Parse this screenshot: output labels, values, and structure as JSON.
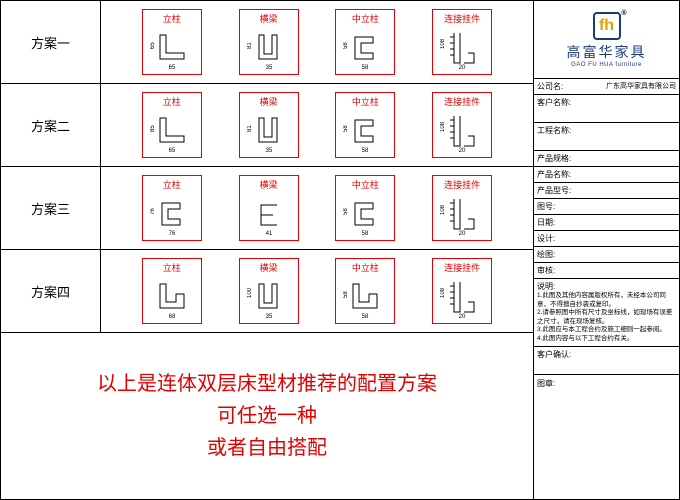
{
  "brand": {
    "cn": "高富华家具",
    "en": "GAO FU HUA furniture",
    "glyph": "fh"
  },
  "company_line": {
    "label": "公司名:",
    "value": "广东高华家具有限公司"
  },
  "schemes": [
    {
      "label": "方案一",
      "parts": [
        {
          "title": "立柱",
          "w": "65",
          "h": "65",
          "shape": "L"
        },
        {
          "title": "横梁",
          "w": "35",
          "h": "81",
          "shape": "U"
        },
        {
          "title": "中立柱",
          "w": "58",
          "h": "58",
          "shape": "C"
        },
        {
          "title": "连接挂件",
          "w": "20",
          "h": "108",
          "shape": "HOOK"
        }
      ]
    },
    {
      "label": "方案二",
      "parts": [
        {
          "title": "立柱",
          "w": "65",
          "h": "85",
          "shape": "L"
        },
        {
          "title": "横梁",
          "w": "35",
          "h": "81",
          "shape": "U"
        },
        {
          "title": "中立柱",
          "w": "58",
          "h": "58",
          "shape": "C"
        },
        {
          "title": "连接挂件",
          "w": "20",
          "h": "108",
          "shape": "HOOK"
        }
      ]
    },
    {
      "label": "方案三",
      "parts": [
        {
          "title": "立柱",
          "w": "76",
          "h": "76",
          "shape": "C"
        },
        {
          "title": "横梁",
          "w": "41",
          "h": "",
          "shape": "C2"
        },
        {
          "title": "中立柱",
          "w": "58",
          "h": "58",
          "shape": "C"
        },
        {
          "title": "连接挂件",
          "w": "20",
          "h": "108",
          "shape": "HOOK"
        }
      ]
    },
    {
      "label": "方案四",
      "parts": [
        {
          "title": "立柱",
          "w": "68",
          "h": "",
          "shape": "L2"
        },
        {
          "title": "横梁",
          "w": "35",
          "h": "100",
          "shape": "U"
        },
        {
          "title": "中立柱",
          "w": "58",
          "h": "58",
          "shape": "L2"
        },
        {
          "title": "连接挂件",
          "w": "20",
          "h": "108",
          "shape": "HOOK"
        }
      ]
    }
  ],
  "summary": [
    "以上是连体双层床型材推荐的配置方案",
    "可任选一种",
    "或者自由搭配"
  ],
  "info_rows": [
    {
      "label": "客户名称:",
      "value": ""
    },
    {
      "label": "工程名称:",
      "value": ""
    },
    {
      "label": "产品规格:",
      "value": ""
    },
    {
      "label": "产品名称:",
      "value": ""
    },
    {
      "label": "产品型号:",
      "value": ""
    },
    {
      "label": "图号:",
      "value": ""
    },
    {
      "label": "日期:",
      "value": ""
    },
    {
      "label": "设计:",
      "value": ""
    },
    {
      "label": "绘图:",
      "value": ""
    },
    {
      "label": "审核:",
      "value": ""
    }
  ],
  "notes": {
    "header": "说明:",
    "items": [
      "1.此图及其他内容属版权所有，未经本公司同意，不得擅自抄袭或复印。",
      "2.请参照图中所有尺寸及坐标线，如现场有误差之尺寸，请在现场复核。",
      "3.此图应与本工程合约及施工细则一起参阅。",
      "4.此图内容与以下工程合约有关。"
    ]
  },
  "confirm_label": "客户确认:",
  "seal_label": "图章:",
  "colors": {
    "accent": "#e30000",
    "brand": "#1a3a7a",
    "gold": "#e3a000"
  }
}
